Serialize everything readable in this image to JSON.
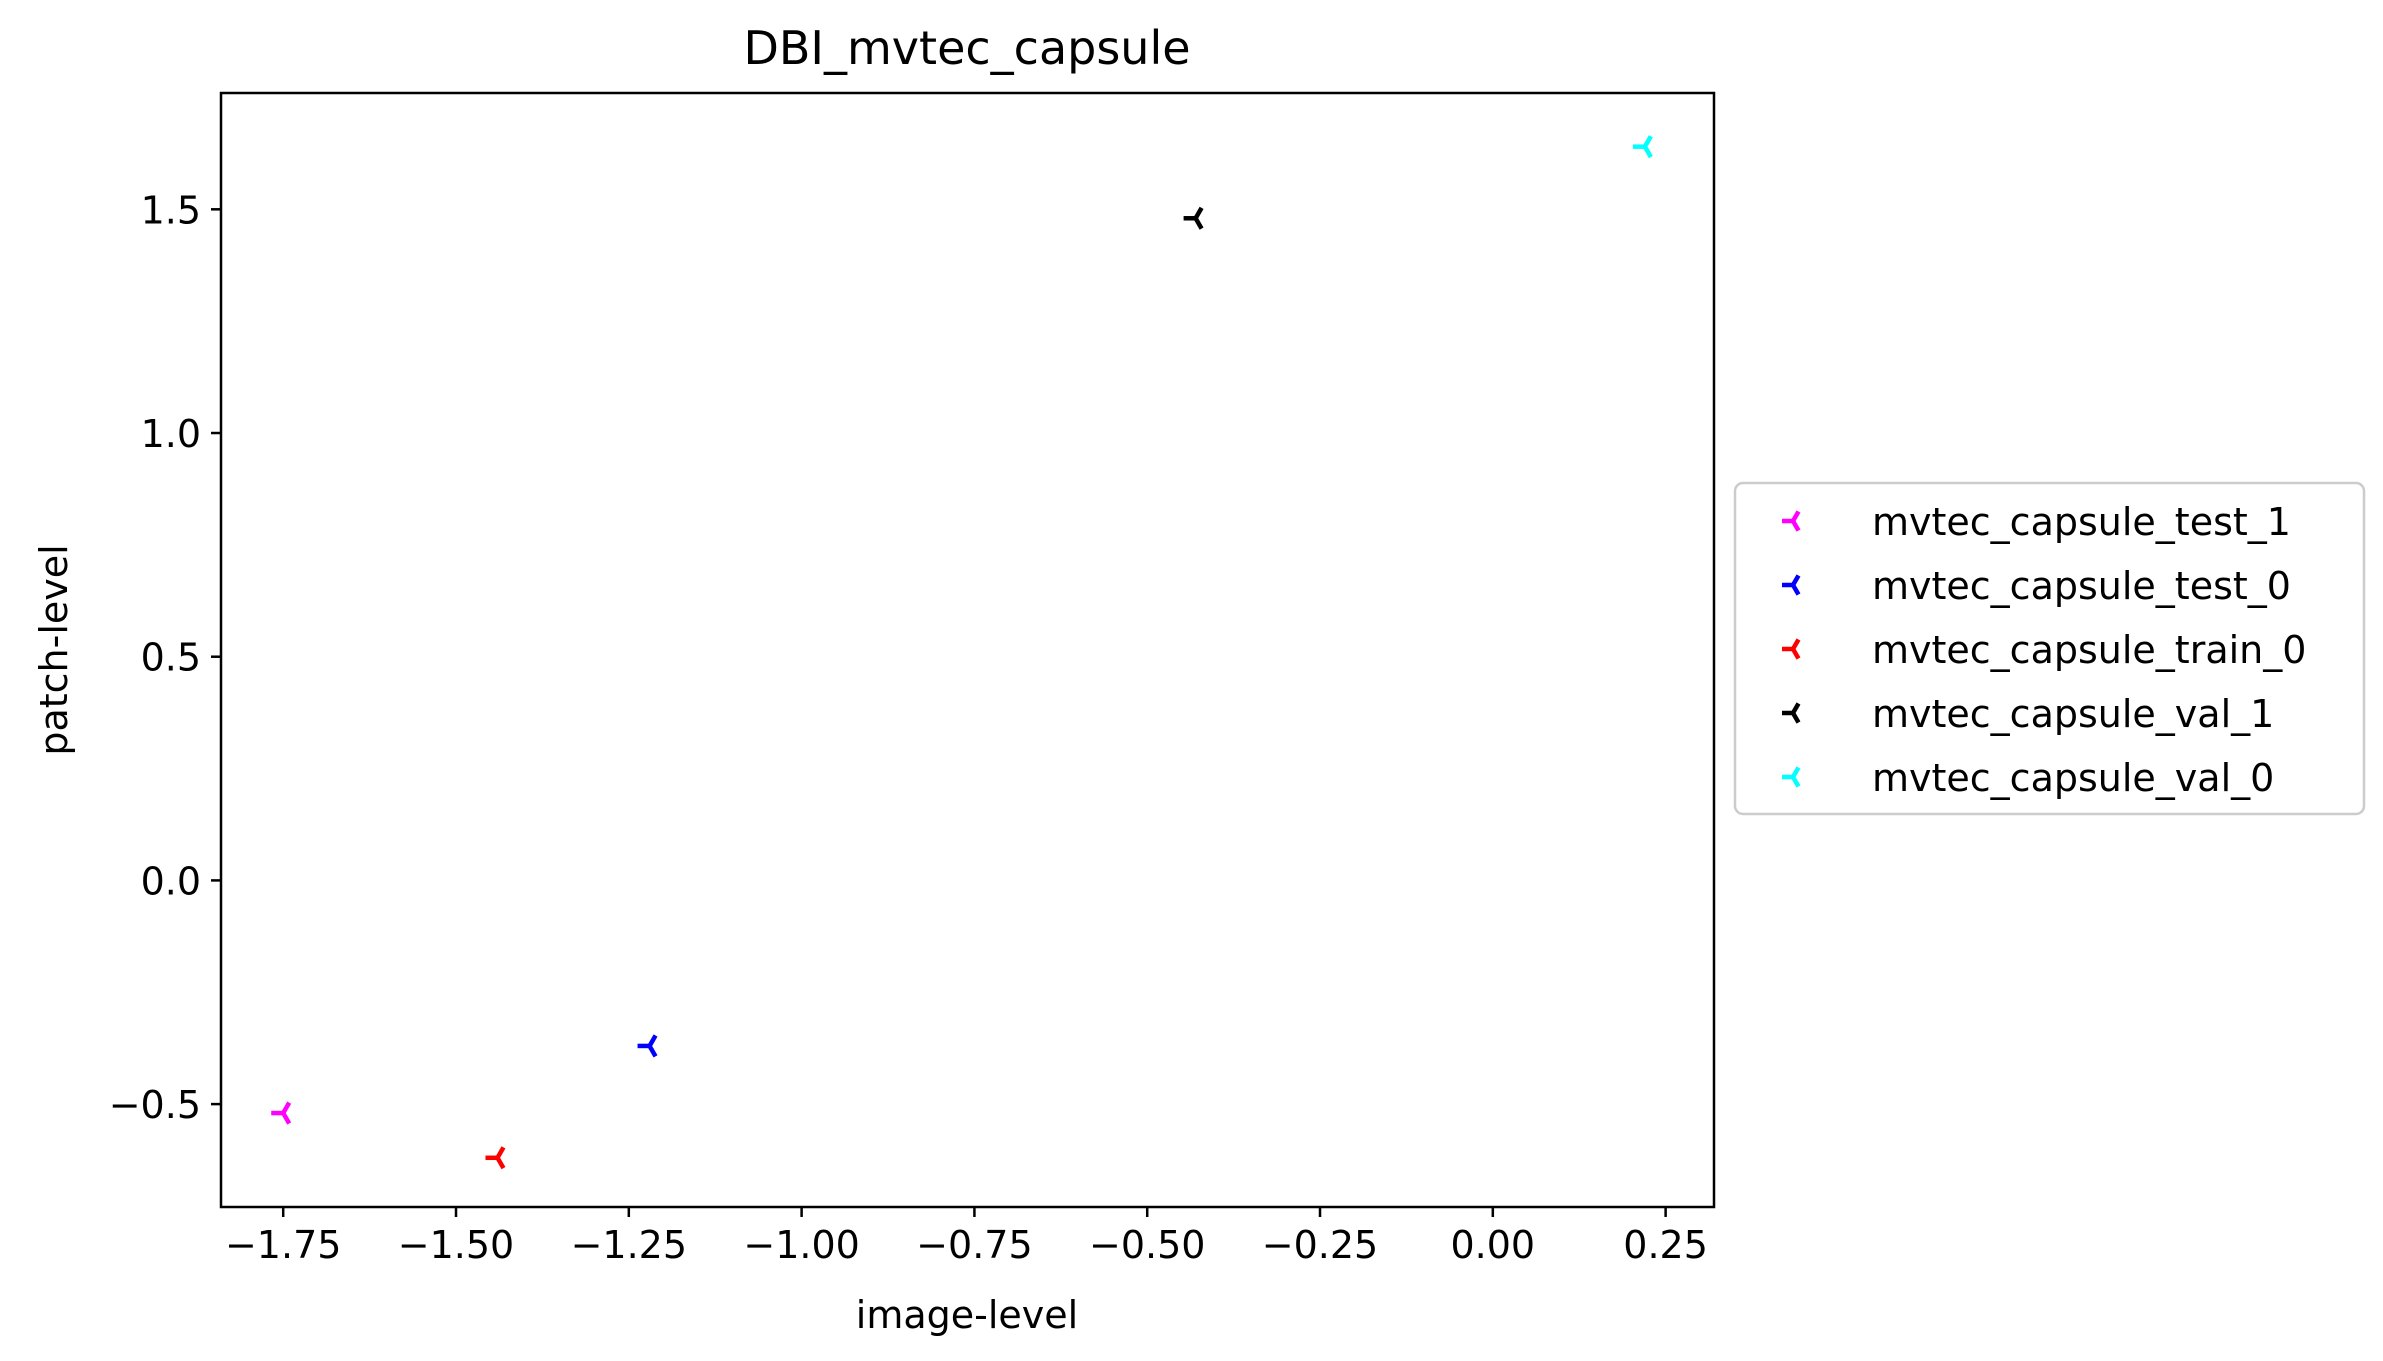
{
  "chart_data": {
    "type": "scatter",
    "title": "DBI_mvtec_capsule",
    "xlabel": "image-level",
    "ylabel": "patch-level",
    "xlim": [
      -1.84,
      0.32
    ],
    "ylim": [
      -0.73,
      1.76
    ],
    "xticks": [
      -1.75,
      -1.5,
      -1.25,
      -1.0,
      -0.75,
      -0.5,
      -0.25,
      0.0,
      0.25
    ],
    "xtick_labels": [
      "−1.75",
      "−1.50",
      "−1.25",
      "−1.00",
      "−0.75",
      "−0.50",
      "−0.25",
      "0.00",
      "0.25"
    ],
    "yticks": [
      -0.5,
      0.0,
      0.5,
      1.0,
      1.5
    ],
    "ytick_labels": [
      "−0.5",
      "0.0",
      "0.5",
      "1.0",
      "1.5"
    ],
    "grid": false,
    "legend_position": "center-right (outside axes)",
    "marker": "tri-left",
    "series": [
      {
        "name": "mvtec_capsule_test_1",
        "color": "#ff00ff",
        "x": [
          -1.75
        ],
        "y": [
          -0.52
        ]
      },
      {
        "name": "mvtec_capsule_test_0",
        "color": "#0000ff",
        "x": [
          -1.22
        ],
        "y": [
          -0.37
        ]
      },
      {
        "name": "mvtec_capsule_train_0",
        "color": "#ff0000",
        "x": [
          -1.44
        ],
        "y": [
          -0.62
        ]
      },
      {
        "name": "mvtec_capsule_val_1",
        "color": "#000000",
        "x": [
          -0.43
        ],
        "y": [
          1.48
        ]
      },
      {
        "name": "mvtec_capsule_val_0",
        "color": "#00ffff",
        "x": [
          0.22
        ],
        "y": [
          1.64
        ]
      }
    ]
  }
}
